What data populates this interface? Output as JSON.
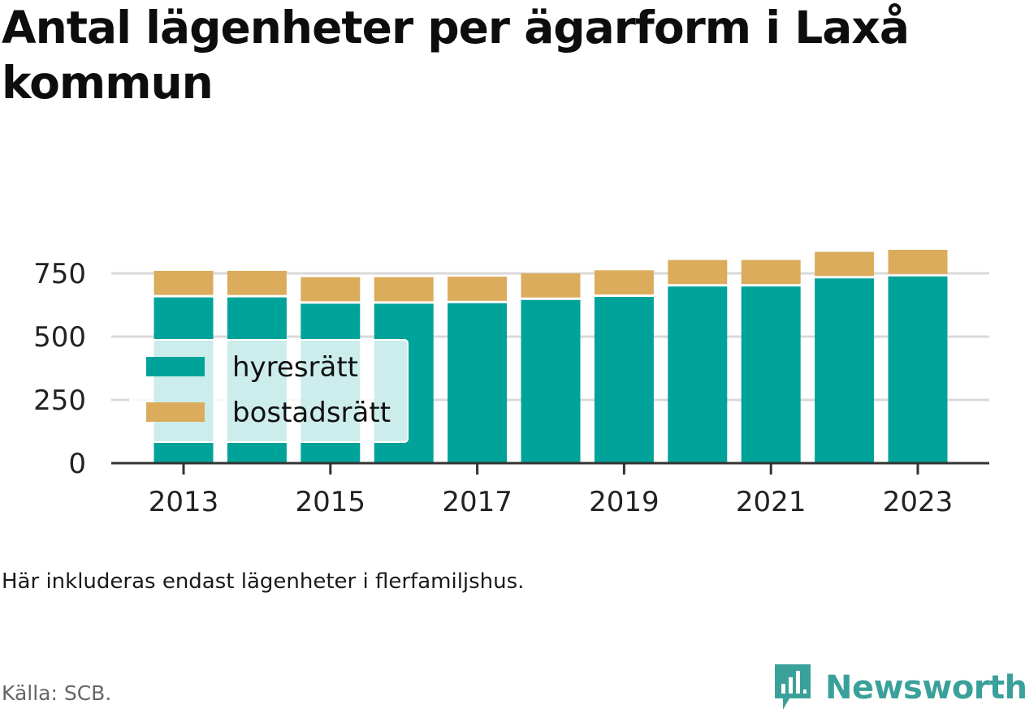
{
  "title": "Antal lägenheter per ägarform i Laxå kommun",
  "note": "Här inkluderas endast lägenheter i flerfamiljshus.",
  "source": "Källa: SCB.",
  "brand": "Newsworthy",
  "colors": {
    "hyresratt": "#00a39a",
    "bostadsratt": "#dbac5c",
    "grid": "#d9d9d9",
    "axis": "#333333",
    "brand": "#3aa19a"
  },
  "chart_data": {
    "type": "bar",
    "stacked": true,
    "categories": [
      "2013",
      "2014",
      "2015",
      "2016",
      "2017",
      "2018",
      "2019",
      "2020",
      "2021",
      "2022",
      "2023"
    ],
    "x_tick_labels": [
      "2013",
      "2015",
      "2017",
      "2019",
      "2021",
      "2023"
    ],
    "series": [
      {
        "name": "hyresrätt",
        "values": [
          655,
          655,
          630,
          630,
          632,
          645,
          657,
          698,
          698,
          730,
          738
        ]
      },
      {
        "name": "bostadsrätt",
        "values": [
          105,
          105,
          105,
          105,
          105,
          105,
          105,
          105,
          105,
          105,
          105
        ]
      }
    ],
    "y_ticks": [
      0,
      250,
      500,
      750
    ],
    "ylim": [
      0,
      850
    ],
    "grid": true,
    "legend_position": "left, overlapping bars"
  }
}
